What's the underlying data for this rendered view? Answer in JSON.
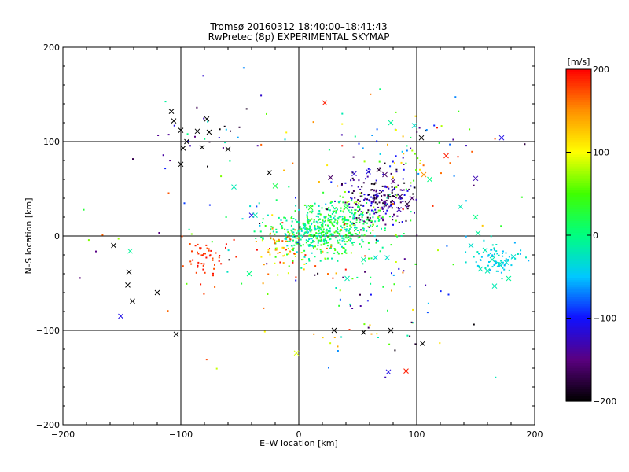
{
  "chart_data": {
    "type": "scatter",
    "title": "Tromsø 20160312 18:40:00–18:41:43",
    "subtitle": "RwPretec (8p) EXPERIMENTAL SKYMAP",
    "xlabel": "E–W location [km]",
    "ylabel": "N–S location [km]",
    "xlim": [
      -200,
      200
    ],
    "ylim": [
      -200,
      200
    ],
    "x_ticks": [
      -200,
      -100,
      0,
      100,
      200
    ],
    "y_ticks": [
      -200,
      -100,
      0,
      100,
      200
    ],
    "grid": true,
    "colorbar": {
      "label": "[m/s]",
      "range": [
        -200,
        200
      ],
      "ticks": [
        -200,
        -100,
        0,
        100,
        200
      ],
      "colormap": [
        "#000000",
        "#5a0080",
        "#1010ff",
        "#00c8ff",
        "#00ff80",
        "#40ff00",
        "#ffff00",
        "#ff9000",
        "#ff0000"
      ]
    },
    "marker_legend": {
      "cross": "large x markers",
      "dot": "small point markers"
    },
    "series": [
      {
        "marker": "cross",
        "points": [
          [
            -108,
            132,
            -200
          ],
          [
            -106,
            122,
            -200
          ],
          [
            -100,
            112,
            -200
          ],
          [
            -86,
            111,
            -200
          ],
          [
            -76,
            110,
            -200
          ],
          [
            -78,
            124,
            -200
          ],
          [
            -95,
            100,
            -200
          ],
          [
            -98,
            93,
            -200
          ],
          [
            -82,
            94,
            -200
          ],
          [
            -60,
            92,
            -200
          ],
          [
            -100,
            76,
            -200
          ],
          [
            -25,
            67,
            -200
          ],
          [
            -157,
            -10,
            -200
          ],
          [
            -144,
            -38,
            -200
          ],
          [
            -145,
            -52,
            -200
          ],
          [
            -141,
            -69,
            -200
          ],
          [
            -120,
            -60,
            -200
          ],
          [
            -104,
            -104,
            -200
          ],
          [
            -151,
            -85,
            -110
          ],
          [
            -143,
            -16,
            -10
          ],
          [
            22,
            141,
            190
          ],
          [
            -55,
            52,
            -20
          ],
          [
            -40,
            22,
            -110
          ],
          [
            -37,
            22,
            -20
          ],
          [
            -20,
            53,
            20
          ],
          [
            27,
            62,
            -160
          ],
          [
            47,
            66,
            -120
          ],
          [
            59,
            68,
            -110
          ],
          [
            68,
            70,
            -180
          ],
          [
            73,
            65,
            -160
          ],
          [
            80,
            58,
            -150
          ],
          [
            86,
            42,
            -170
          ],
          [
            92,
            34,
            -180
          ],
          [
            96,
            40,
            -160
          ],
          [
            85,
            28,
            -130
          ],
          [
            106,
            65,
            150
          ],
          [
            104,
            104,
            -200
          ],
          [
            125,
            85,
            190
          ],
          [
            150,
            61,
            -130
          ],
          [
            172,
            104,
            -110
          ],
          [
            78,
            120,
            -10
          ],
          [
            98,
            117,
            -30
          ],
          [
            111,
            60,
            0
          ],
          [
            55,
            -25,
            -10
          ],
          [
            65,
            -23,
            -30
          ],
          [
            75,
            -23,
            -30
          ],
          [
            41,
            -45,
            -20
          ],
          [
            30,
            -100,
            -200
          ],
          [
            55,
            -102,
            -200
          ],
          [
            78,
            -100,
            -200
          ],
          [
            105,
            -114,
            -200
          ],
          [
            76,
            -144,
            -110
          ],
          [
            91,
            -143,
            190
          ],
          [
            -2,
            -124,
            90
          ],
          [
            -42,
            -40,
            0
          ],
          [
            137,
            31,
            -20
          ],
          [
            150,
            20,
            0
          ],
          [
            152,
            3,
            -10
          ],
          [
            158,
            -15,
            -20
          ],
          [
            164,
            -25,
            -20
          ],
          [
            170,
            -30,
            -20
          ],
          [
            176,
            -28,
            -30
          ],
          [
            182,
            -22,
            -30
          ],
          [
            160,
            -37,
            -20
          ],
          [
            166,
            -53,
            -20
          ],
          [
            178,
            -45,
            -10
          ],
          [
            146,
            -10,
            -30
          ],
          [
            154,
            -35,
            -20
          ],
          [
            40,
            30,
            20
          ],
          [
            10,
            30,
            30
          ]
        ]
      },
      {
        "marker": "dot",
        "clusters": [
          {
            "cx": 15,
            "cy": 5,
            "sx": 22,
            "sy": 13,
            "n": 460,
            "vmin": -40,
            "vmax": 60
          },
          {
            "cx": 45,
            "cy": 20,
            "sx": 18,
            "sy": 13,
            "n": 150,
            "vmin": -40,
            "vmax": 80
          },
          {
            "cx": 68,
            "cy": 38,
            "sx": 14,
            "sy": 13,
            "n": 200,
            "vmin": -200,
            "vmax": -100
          },
          {
            "cx": -78,
            "cy": -25,
            "sx": 10,
            "sy": 10,
            "n": 50,
            "vmin": 170,
            "vmax": 200
          },
          {
            "cx": -15,
            "cy": -15,
            "sx": 12,
            "sy": 12,
            "n": 60,
            "vmin": 80,
            "vmax": 200
          },
          {
            "cx": 170,
            "cy": -25,
            "sx": 12,
            "sy": 9,
            "n": 70,
            "vmin": -60,
            "vmax": -20
          },
          {
            "cx": 90,
            "cy": 90,
            "sx": 25,
            "sy": 25,
            "n": 70,
            "vmin": -200,
            "vmax": 200
          },
          {
            "cx": -80,
            "cy": 110,
            "sx": 25,
            "sy": 20,
            "n": 30,
            "vmin": -200,
            "vmax": 0
          },
          {
            "cx": 60,
            "cy": -70,
            "sx": 25,
            "sy": 30,
            "n": 55,
            "vmin": -200,
            "vmax": 200
          },
          {
            "cx": 0,
            "cy": 0,
            "sx": 100,
            "sy": 70,
            "n": 120,
            "vmin": -200,
            "vmax": 200
          }
        ]
      }
    ]
  }
}
